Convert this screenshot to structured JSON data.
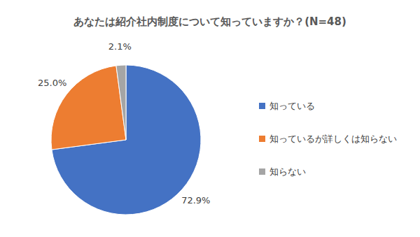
{
  "chart_data": {
    "type": "pie",
    "title": "あなたは紹介社内制度について知っていますか？(N=48)",
    "categories": [
      "知っている",
      "知っているが詳しくは知らない",
      "知らない"
    ],
    "values": [
      72.9,
      25.0,
      2.1
    ],
    "value_labels": [
      "72.9%",
      "25.0%",
      "2.1%"
    ],
    "colors": [
      "#4472c4",
      "#ed7d31",
      "#a5a5a5"
    ],
    "data_labels": true,
    "legend": "right"
  }
}
